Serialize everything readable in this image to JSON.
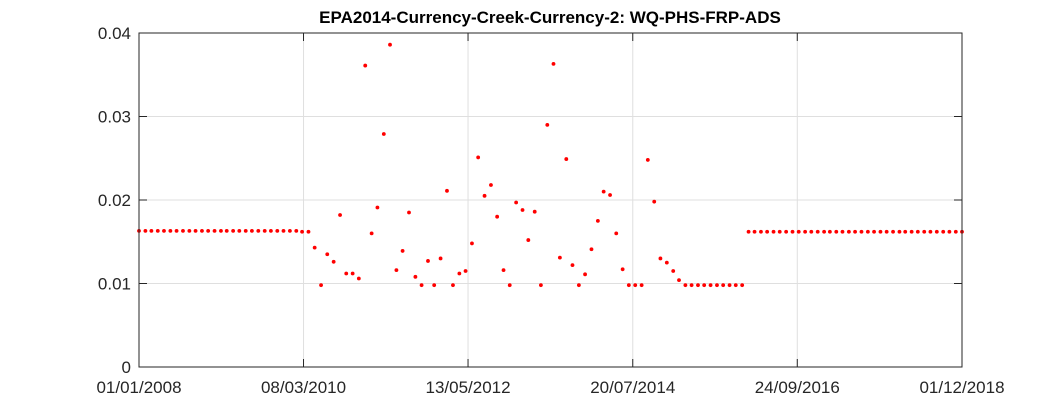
{
  "chart_data": {
    "type": "scatter",
    "title": "EPA2014-Currency-Creek-Currency-2: WQ-PHS-FRP-ADS",
    "xlabel": "",
    "ylabel": "",
    "xlim": [
      "01/01/2008",
      "01/12/2018"
    ],
    "ylim": [
      0,
      0.04
    ],
    "x_ticks": [
      "01/01/2008",
      "08/03/2010",
      "13/05/2012",
      "20/07/2014",
      "24/09/2016",
      "01/12/2018"
    ],
    "y_ticks": [
      "0",
      "0.01",
      "0.02",
      "0.03",
      "0.04"
    ],
    "grid": true,
    "marker_color": "#ff0000",
    "series": [
      {
        "x": [
          "01/01/2008",
          "01/02/2008",
          "01/03/2008",
          "01/04/2008",
          "01/05/2008",
          "01/06/2008",
          "01/07/2008",
          "01/08/2008",
          "01/09/2008",
          "01/10/2008",
          "01/11/2008",
          "01/12/2008",
          "01/01/2009",
          "01/02/2009",
          "01/03/2009",
          "01/04/2009",
          "01/05/2009",
          "01/06/2009",
          "01/07/2009",
          "01/08/2009",
          "01/09/2009",
          "01/10/2009",
          "01/11/2009",
          "01/12/2009",
          "01/01/2010",
          "01/02/2010",
          "01/03/2010",
          "01/04/2010",
          "01/05/2010",
          "01/06/2010",
          "01/07/2010",
          "01/08/2010",
          "01/09/2010",
          "01/10/2010",
          "01/11/2010",
          "01/12/2010",
          "01/01/2011",
          "01/02/2011",
          "01/03/2011",
          "01/04/2011",
          "01/05/2011",
          "01/06/2011",
          "01/07/2011",
          "01/08/2011",
          "01/09/2011",
          "01/10/2011",
          "01/11/2011",
          "01/12/2011",
          "01/01/2012",
          "01/02/2012",
          "01/03/2012",
          "01/04/2012",
          "01/05/2012",
          "01/06/2012",
          "01/07/2012",
          "01/08/2012",
          "01/09/2012",
          "01/10/2012",
          "01/11/2012",
          "01/12/2012",
          "01/01/2013",
          "01/02/2013",
          "01/03/2013",
          "01/04/2013",
          "01/05/2013",
          "01/06/2013",
          "01/07/2013",
          "01/08/2013",
          "01/09/2013",
          "01/10/2013",
          "01/11/2013",
          "01/12/2013",
          "01/01/2014",
          "01/02/2014",
          "01/03/2014",
          "01/04/2014",
          "01/05/2014",
          "01/06/2014",
          "01/07/2014",
          "01/08/2014",
          "01/09/2014",
          "01/10/2014",
          "01/11/2014",
          "01/12/2014",
          "01/01/2015",
          "01/02/2015",
          "01/03/2015",
          "01/04/2015",
          "01/05/2015",
          "01/06/2015",
          "01/07/2015",
          "01/08/2015",
          "01/09/2015",
          "01/10/2015",
          "01/11/2015",
          "01/12/2015",
          "01/01/2016",
          "01/02/2016",
          "01/03/2016",
          "01/04/2016",
          "01/05/2016",
          "01/06/2016",
          "01/07/2016",
          "01/08/2016",
          "01/09/2016",
          "01/10/2016",
          "01/11/2016",
          "01/12/2016",
          "01/01/2017",
          "01/02/2017",
          "01/03/2017",
          "01/04/2017",
          "01/05/2017",
          "01/06/2017",
          "01/07/2017",
          "01/08/2017",
          "01/09/2017",
          "01/10/2017",
          "01/11/2017",
          "01/12/2017",
          "01/01/2018",
          "01/02/2018",
          "01/03/2018",
          "01/04/2018",
          "01/05/2018",
          "01/06/2018",
          "01/07/2018",
          "01/08/2018",
          "01/09/2018",
          "01/10/2018",
          "01/11/2018",
          "01/12/2018"
        ],
        "y": [
          0.0163,
          0.0163,
          0.0163,
          0.0163,
          0.0163,
          0.0163,
          0.0163,
          0.0163,
          0.0163,
          0.0163,
          0.0163,
          0.0163,
          0.0163,
          0.0163,
          0.0163,
          0.0163,
          0.0163,
          0.0163,
          0.0163,
          0.0163,
          0.0163,
          0.0163,
          0.0163,
          0.0163,
          0.0163,
          0.0163,
          0.0162,
          0.0162,
          0.0143,
          0.0098,
          0.0135,
          0.0126,
          0.0182,
          0.0112,
          0.0112,
          0.0106,
          0.0361,
          0.016,
          0.0191,
          0.0279,
          0.0386,
          0.0116,
          0.0139,
          0.0185,
          0.0108,
          0.0098,
          0.0127,
          0.0098,
          0.013,
          0.0211,
          0.0098,
          0.0112,
          0.0115,
          0.0148,
          0.0251,
          0.0205,
          0.0218,
          0.018,
          0.0116,
          0.0098,
          0.0197,
          0.0188,
          0.0152,
          0.0186,
          0.0098,
          0.029,
          0.0363,
          0.0131,
          0.0249,
          0.0122,
          0.0098,
          0.0111,
          0.0141,
          0.0175,
          0.021,
          0.0206,
          0.016,
          0.0117,
          0.0098,
          0.0098,
          0.0098,
          0.0248,
          0.0198,
          0.013,
          0.0125,
          0.0115,
          0.0104,
          0.0098,
          0.0098,
          0.0098,
          0.0098,
          0.0098,
          0.0098,
          0.0098,
          0.0098,
          0.0098,
          0.0098,
          0.0162,
          0.0162,
          0.0162,
          0.0162,
          0.0162,
          0.0162,
          0.0162,
          0.0162,
          0.0162,
          0.0162,
          0.0162,
          0.0162,
          0.0162,
          0.0162,
          0.0162,
          0.0162,
          0.0162,
          0.0162,
          0.0162,
          0.0162,
          0.0162,
          0.0162,
          0.0162,
          0.0162,
          0.0162,
          0.0162,
          0.0162,
          0.0162,
          0.0162,
          0.0162,
          0.0162,
          0.0162,
          0.0162,
          0.0162,
          0.0162
        ]
      }
    ]
  }
}
